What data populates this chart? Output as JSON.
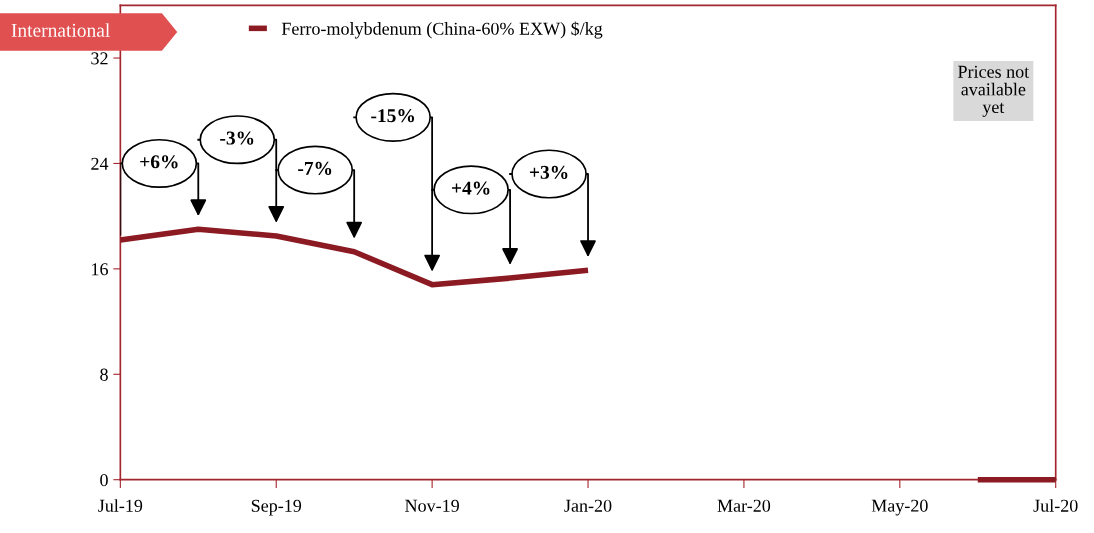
{
  "chart_data": {
    "type": "line",
    "title": "International",
    "categories": [
      "Jul-19",
      null,
      "Sep-19",
      null,
      "Nov-19",
      null,
      "Jan-20",
      null,
      "Mar-20",
      null,
      "May-20",
      null,
      "Jul-20"
    ],
    "series": [
      {
        "name": "Ferro-molybdenum (China-60% EXW) $/kg",
        "color": "#8b1a22",
        "values": [
          18.2,
          19.0,
          18.5,
          17.3,
          14.8,
          15.3,
          15.9,
          null,
          null,
          null,
          null,
          0,
          0
        ]
      }
    ],
    "ylim": [
      0,
      36
    ],
    "yticks": [
      0,
      8,
      16,
      24,
      32
    ],
    "grid": false,
    "legend": "top left",
    "marker": "none",
    "line_style": "solid",
    "annotations": [
      "+6%",
      "-3%",
      "-7%",
      "-15%",
      "+4%",
      "+3%",
      "Prices not\navailable\nyet"
    ]
  }
}
